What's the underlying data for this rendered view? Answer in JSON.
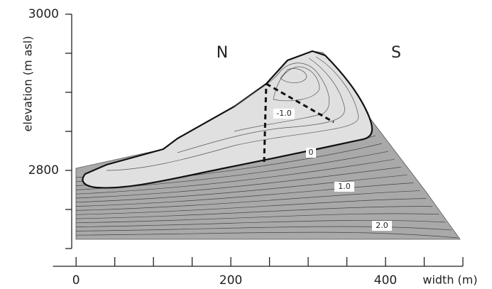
{
  "chart_data": {
    "type": "contour",
    "xlabel": "width (m)",
    "ylabel": "elevation (m asl)",
    "xlim": [
      -30,
      500
    ],
    "xticks": [
      0,
      200,
      400
    ],
    "xminor_ticks": [
      50,
      100,
      150,
      250,
      300,
      350,
      450,
      500
    ],
    "ylim": [
      2700,
      3000
    ],
    "yticks": [
      2800,
      3000
    ],
    "yminor_ticks": [
      2700,
      2750,
      2850,
      2900,
      2950
    ],
    "annotations": [
      "N",
      "S"
    ],
    "contour_labels": [
      {
        "value": -1,
        "label": "-1.0"
      },
      {
        "value": 0,
        "label": "0"
      },
      {
        "value": 1,
        "label": "1.0"
      },
      {
        "value": 2,
        "label": "2.0"
      }
    ]
  }
}
